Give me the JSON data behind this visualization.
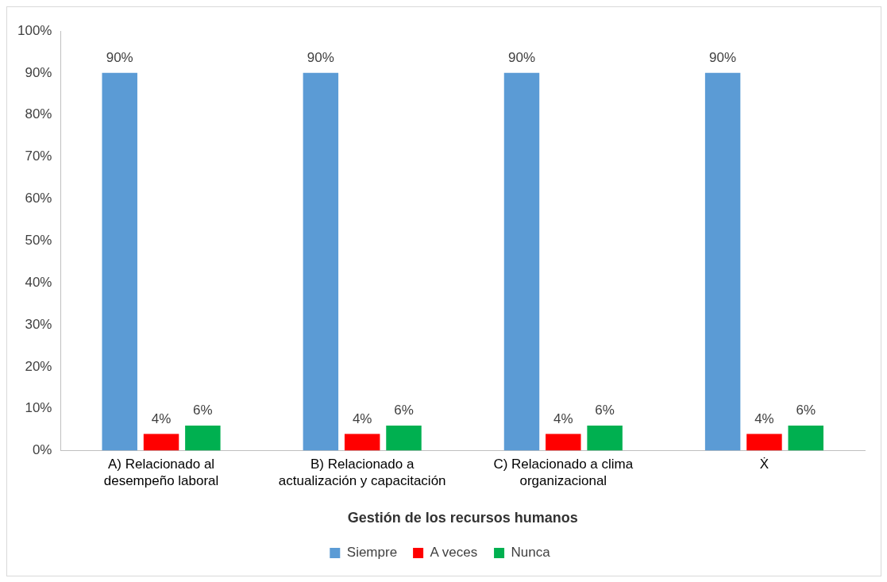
{
  "chart_data": {
    "type": "bar",
    "xlabel": "Gestión de los recursos humanos",
    "categories": [
      "A) Relacionado al desempeño laboral",
      "B) Relacionado a actualización y capacitación",
      "C) Relacionado a clima organizacional",
      "Ẋ"
    ],
    "series": [
      {
        "name": "Siempre",
        "color": "#5b9bd5",
        "values": [
          90,
          90,
          90,
          90
        ],
        "value_labels": [
          "90%",
          "90%",
          "90%",
          "90%"
        ]
      },
      {
        "name": "A veces",
        "color": "#ff0000",
        "values": [
          4,
          4,
          4,
          4
        ],
        "value_labels": [
          "4%",
          "4%",
          "4%",
          "4%"
        ]
      },
      {
        "name": "Nunca",
        "color": "#00b050",
        "values": [
          6,
          6,
          6,
          6
        ],
        "value_labels": [
          "6%",
          "6%",
          "6%",
          "6%"
        ]
      }
    ],
    "ylim": [
      0,
      100
    ],
    "yticks": [
      {
        "value": 0,
        "label": "0%"
      },
      {
        "value": 10,
        "label": "10%"
      },
      {
        "value": 20,
        "label": "20%"
      },
      {
        "value": 30,
        "label": "30%"
      },
      {
        "value": 40,
        "label": "40%"
      },
      {
        "value": 50,
        "label": "50%"
      },
      {
        "value": 60,
        "label": "60%"
      },
      {
        "value": 70,
        "label": "70%"
      },
      {
        "value": 80,
        "label": "80%"
      },
      {
        "value": 90,
        "label": "90%"
      },
      {
        "value": 100,
        "label": "100%"
      }
    ],
    "grid": false,
    "legend": "bottom"
  }
}
